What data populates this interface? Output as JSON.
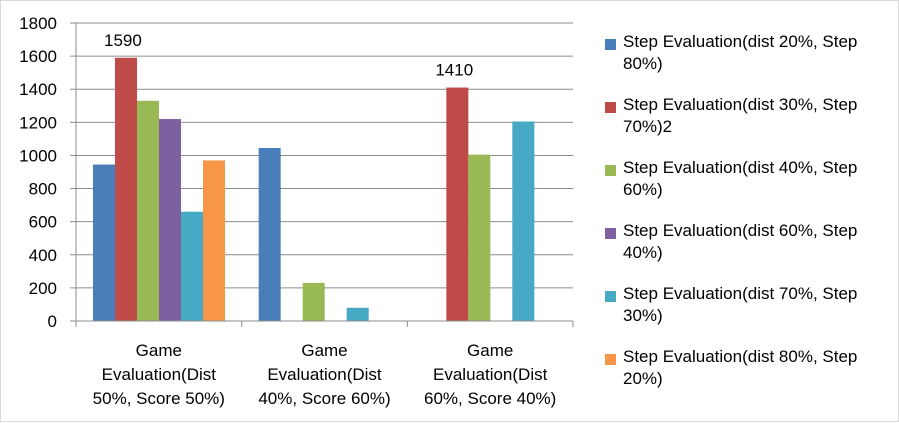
{
  "chart_data": {
    "type": "bar",
    "categories": [
      "Game Evaluation(Dist 50%, Score 50%)",
      "Game Evaluation(Dist 40%, Score 60%)",
      "Game Evaluation(Dist 60%, Score 40%)"
    ],
    "series": [
      {
        "name": "Step Evaluation(dist 20%, Step 80%)",
        "color": "#4a7ebb",
        "values": [
          945,
          1045,
          null
        ]
      },
      {
        "name": "Step Evaluation(dist 30%, Step 70%)2",
        "color": "#be4b48",
        "values": [
          1590,
          null,
          1410
        ]
      },
      {
        "name": "Step Evaluation(dist 40%, Step 60%)",
        "color": "#98b954",
        "values": [
          1330,
          230,
          1005
        ]
      },
      {
        "name": "Step Evaluation(dist 60%, Step 40%)",
        "color": "#7d60a0",
        "values": [
          1220,
          null,
          null
        ]
      },
      {
        "name": "Step Evaluation(dist 70%, Step 30%)",
        "color": "#46aac5",
        "values": [
          660,
          80,
          1205
        ]
      },
      {
        "name": "Step Evaluation(dist 80%, Step 20%)",
        "color": "#f79646",
        "values": [
          970,
          null,
          null
        ]
      }
    ],
    "data_labels": [
      {
        "series_index": 1,
        "category_index": 0,
        "text": "1590"
      },
      {
        "series_index": 1,
        "category_index": 2,
        "text": "1410"
      }
    ],
    "y_ticks": [
      "0",
      "200",
      "400",
      "600",
      "800",
      "1000",
      "1200",
      "1400",
      "1600",
      "1800"
    ],
    "ylim": [
      0,
      1800
    ],
    "grid": true,
    "legend": "right"
  }
}
